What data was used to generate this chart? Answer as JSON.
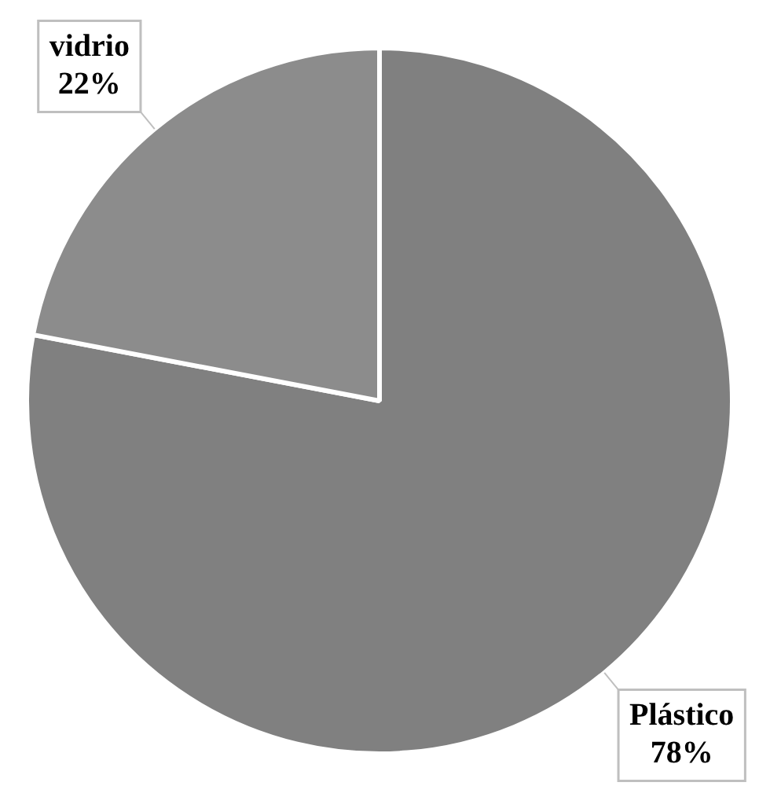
{
  "chart_data": {
    "type": "pie",
    "categories": [
      "Plástico",
      "vidrio"
    ],
    "values": [
      78,
      22
    ],
    "colors": [
      "#808080",
      "#8c8c8c"
    ],
    "value_labels": [
      "78%",
      "22%"
    ],
    "legend": false
  }
}
